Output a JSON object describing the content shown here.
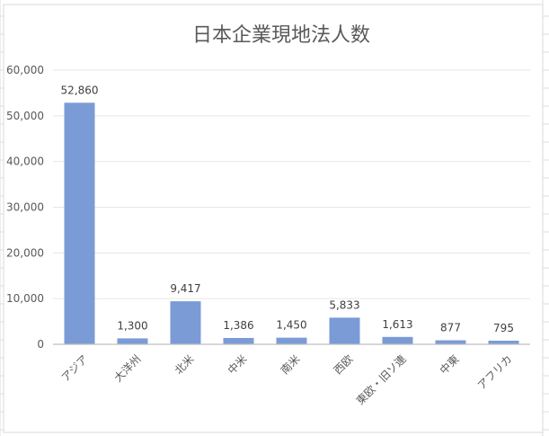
{
  "chart_data": {
    "type": "bar",
    "title": "日本企業現地法人数",
    "xlabel": "",
    "ylabel": "",
    "categories": [
      "アジア",
      "大洋州",
      "北米",
      "中米",
      "南米",
      "西欧",
      "東欧・旧ソ連",
      "中東",
      "アフリカ"
    ],
    "values": [
      52860,
      1300,
      9417,
      1386,
      1450,
      5833,
      1613,
      877,
      795
    ],
    "data_labels": [
      "52,860",
      "1,300",
      "9,417",
      "1,386",
      "1,450",
      "5,833",
      "1,613",
      "877",
      "795"
    ],
    "yticks": [
      "0",
      "10,000",
      "20,000",
      "30,000",
      "40,000",
      "50,000",
      "60,000"
    ],
    "ylim": [
      0,
      60000
    ],
    "grid": true,
    "legend": "none",
    "colors": {
      "bar": "#7b9bd6",
      "grid": "#e6e6e6",
      "axis": "#bfbfbf",
      "text": "#595959"
    }
  }
}
